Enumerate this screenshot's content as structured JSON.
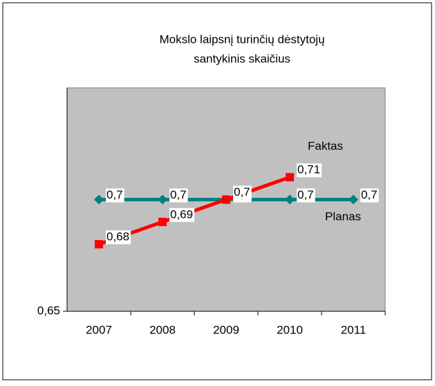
{
  "chart_data": {
    "type": "line",
    "title": [
      "Mokslo laipsnį turinčių dėstytojų",
      "santykinis skaičius"
    ],
    "categories": [
      "2007",
      "2008",
      "2009",
      "2010",
      "2011"
    ],
    "series": [
      {
        "name": "Planas",
        "color": "#008080",
        "marker": "diamond",
        "values": [
          0.7,
          0.7,
          0.7,
          0.7,
          0.7
        ],
        "value_labels": [
          "0,7",
          "0,7",
          "0,7",
          "0,7",
          "0,7"
        ]
      },
      {
        "name": "Faktas",
        "color": "#ff0000",
        "marker": "square",
        "values": [
          0.68,
          0.69,
          0.7,
          0.71,
          null
        ],
        "value_labels": [
          "0,68",
          "0,69",
          "0,7",
          "0,71",
          null
        ]
      }
    ],
    "ylim": [
      0.65,
      0.75
    ],
    "yticks": [
      {
        "value": 0.65,
        "label": "0,65"
      }
    ],
    "plot_background": "#c0c0c0"
  }
}
